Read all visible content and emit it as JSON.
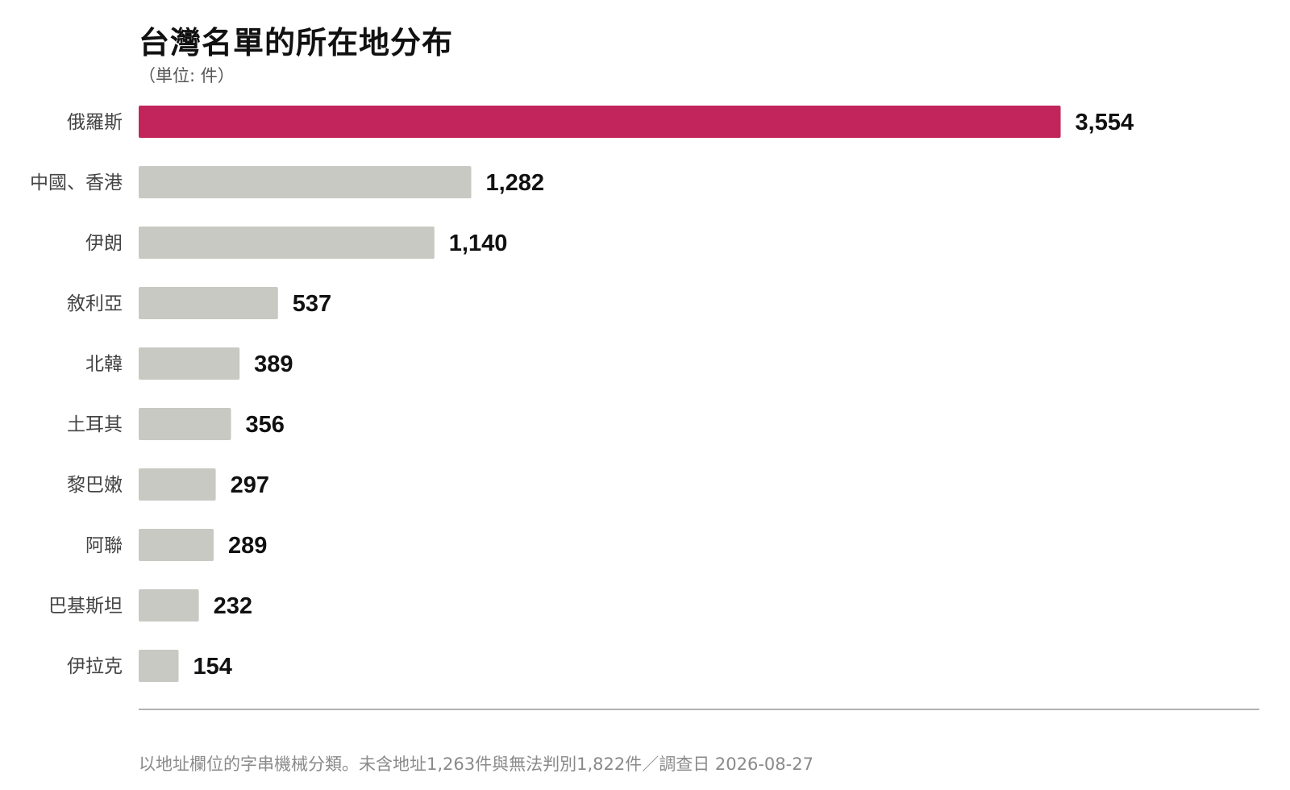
{
  "header": {
    "title": "台灣名單的所在地分布",
    "subtitle": "（単位: 件）"
  },
  "footer": {
    "note": "以地址欄位的字串機械分類。未含地址1,263件與無法判別1,822件／調查日 2026-08-27"
  },
  "colors": {
    "highlight": "#c2255c",
    "bar": "#c9c9c4",
    "axis": "#999999"
  },
  "chart_data": {
    "type": "bar",
    "orientation": "horizontal",
    "title": "台灣名單的所在地分布",
    "subtitle": "（単位: 件）",
    "categories": [
      "俄羅斯",
      "中國、香港",
      "伊朗",
      "敘利亞",
      "北韓",
      "土耳其",
      "黎巴嫩",
      "阿聯",
      "巴基斯坦",
      "伊拉克"
    ],
    "values": [
      3554,
      1282,
      1140,
      537,
      389,
      356,
      297,
      289,
      232,
      154
    ],
    "value_labels": [
      "3,554",
      "1,282",
      "1,140",
      "537",
      "389",
      "356",
      "297",
      "289",
      "232",
      "154"
    ],
    "highlight_index": 0,
    "xlim": [
      0,
      4320
    ],
    "grid": false,
    "legend": "none"
  }
}
